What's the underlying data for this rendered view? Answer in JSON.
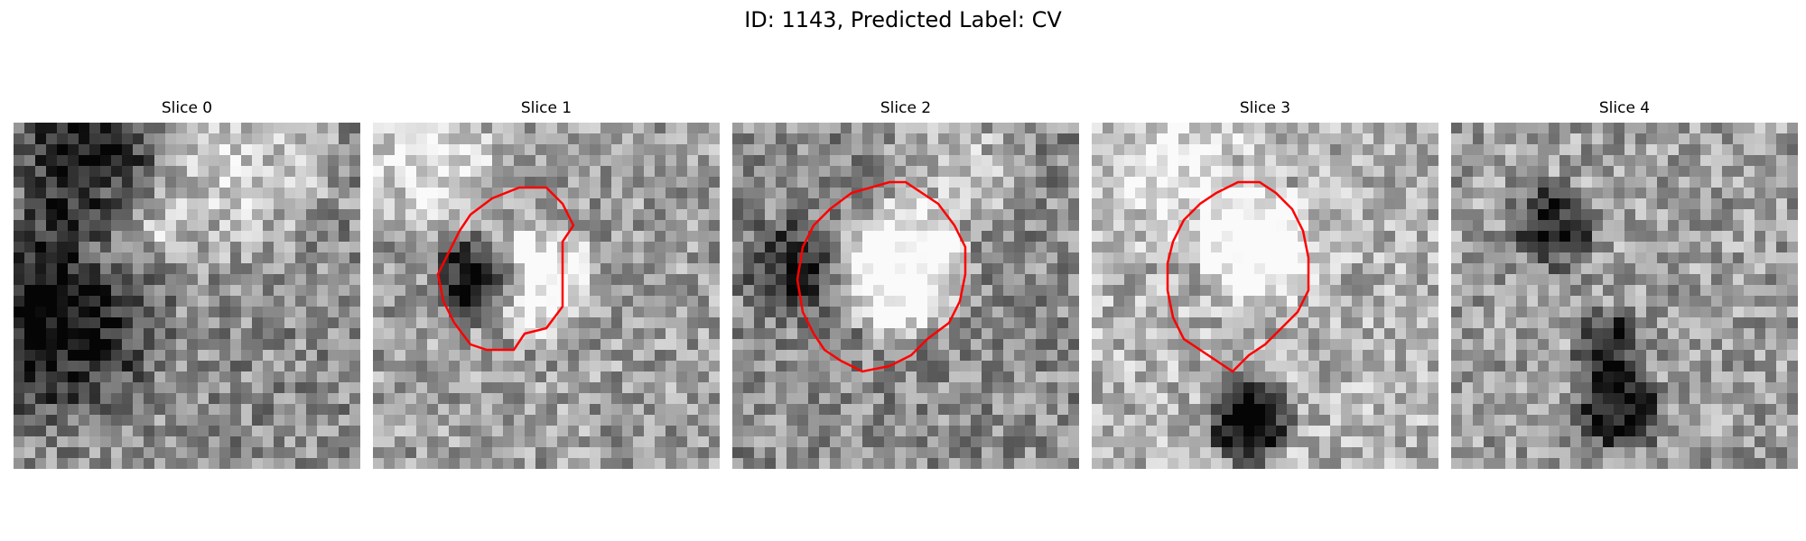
{
  "title": "ID: 1143, Predicted Label: CV",
  "contour_color": "#ff0000",
  "panels": [
    {
      "title": "Slice 0",
      "seed": 11,
      "bright": 0.55,
      "contour": false,
      "spots": [
        [
          3,
          17,
          0.75,
          -0.5
        ],
        [
          7,
          2,
          0.55,
          -0.45
        ],
        [
          20,
          3,
          0.7,
          0.25
        ],
        [
          10,
          10,
          0.4,
          0.2
        ]
      ]
    },
    {
      "title": "Slice 1",
      "seed": 23,
      "bright": 0.62,
      "contour": true,
      "spots": [
        [
          15,
          14,
          0.38,
          0.45
        ],
        [
          9,
          14,
          0.3,
          -0.6
        ],
        [
          5,
          3,
          0.45,
          0.3
        ]
      ]
    },
    {
      "title": "Slice 2",
      "seed": 37,
      "bright": 0.55,
      "contour": true,
      "spots": [
        [
          15,
          13,
          0.45,
          0.6
        ],
        [
          5,
          13,
          0.35,
          -0.4
        ],
        [
          20,
          4,
          0.45,
          0.2
        ]
      ]
    },
    {
      "title": "Slice 3",
      "seed": 41,
      "bright": 0.7,
      "contour": true,
      "spots": [
        [
          15,
          11,
          0.4,
          0.45
        ],
        [
          14,
          27,
          0.3,
          -0.8
        ],
        [
          7,
          4,
          0.5,
          0.2
        ]
      ]
    },
    {
      "title": "Slice 4",
      "seed": 53,
      "bright": 0.62,
      "contour": false,
      "spots": [
        [
          9,
          9,
          0.3,
          -0.5
        ],
        [
          14,
          20,
          0.25,
          -0.5
        ],
        [
          15,
          26,
          0.3,
          -0.6
        ]
      ]
    }
  ]
}
